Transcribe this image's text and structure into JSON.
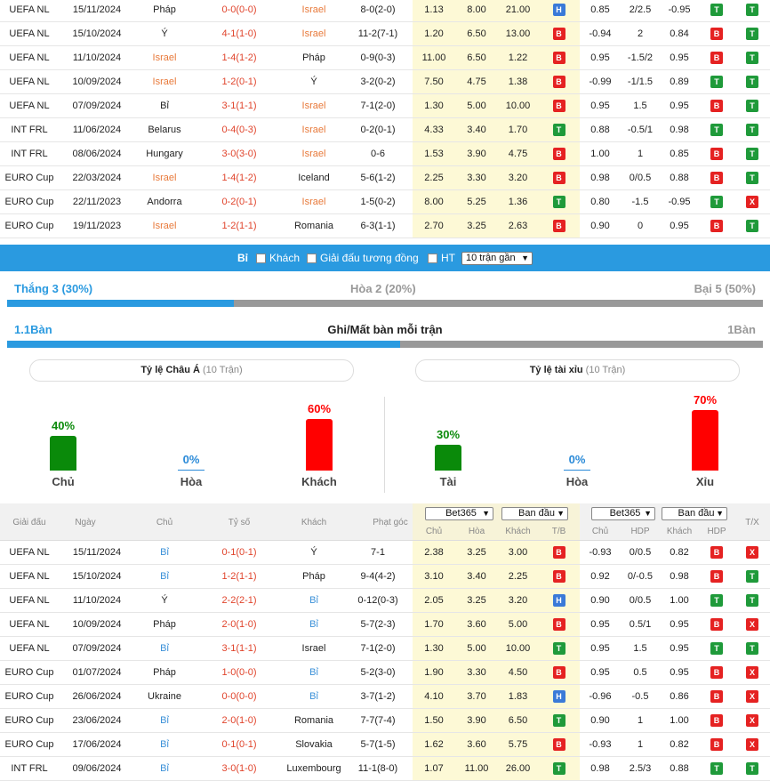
{
  "table1": [
    {
      "league": "UEFA NL",
      "date": "15/11/2024",
      "home": "Pháp",
      "score": "0-0(0-0)",
      "away": "Israel",
      "corner": "8-0(2-0)",
      "o1": "1.13",
      "o2": "8.00",
      "o3": "21.00",
      "tb": "H",
      "h1": "0.85",
      "h2": "2/2.5",
      "h3": "-0.95",
      "hdp": "T",
      "tx": "T",
      "hl": "away"
    },
    {
      "league": "UEFA NL",
      "date": "15/10/2024",
      "home": "Ý",
      "score": "4-1(1-0)",
      "away": "Israel",
      "corner": "11-2(7-1)",
      "o1": "1.20",
      "o2": "6.50",
      "o3": "13.00",
      "tb": "B",
      "h1": "-0.94",
      "h2": "2",
      "h3": "0.84",
      "hdp": "B",
      "tx": "T",
      "hl": "away"
    },
    {
      "league": "UEFA NL",
      "date": "11/10/2024",
      "home": "Israel",
      "score": "1-4(1-2)",
      "away": "Pháp",
      "corner": "0-9(0-3)",
      "o1": "11.00",
      "o2": "6.50",
      "o3": "1.22",
      "tb": "B",
      "h1": "0.95",
      "h2": "-1.5/2",
      "h3": "0.95",
      "hdp": "B",
      "tx": "T",
      "hl": "home"
    },
    {
      "league": "UEFA NL",
      "date": "10/09/2024",
      "home": "Israel",
      "score": "1-2(0-1)",
      "away": "Ý",
      "corner": "3-2(0-2)",
      "o1": "7.50",
      "o2": "4.75",
      "o3": "1.38",
      "tb": "B",
      "h1": "-0.99",
      "h2": "-1/1.5",
      "h3": "0.89",
      "hdp": "T",
      "tx": "T",
      "hl": "home"
    },
    {
      "league": "UEFA NL",
      "date": "07/09/2024",
      "home": "Bỉ",
      "score": "3-1(1-1)",
      "away": "Israel",
      "corner": "7-1(2-0)",
      "o1": "1.30",
      "o2": "5.00",
      "o3": "10.00",
      "tb": "B",
      "h1": "0.95",
      "h2": "1.5",
      "h3": "0.95",
      "hdp": "B",
      "tx": "T",
      "hl": "away"
    },
    {
      "league": "INT FRL",
      "date": "11/06/2024",
      "home": "Belarus",
      "score": "0-4(0-3)",
      "away": "Israel",
      "corner": "0-2(0-1)",
      "o1": "4.33",
      "o2": "3.40",
      "o3": "1.70",
      "tb": "T",
      "h1": "0.88",
      "h2": "-0.5/1",
      "h3": "0.98",
      "hdp": "T",
      "tx": "T",
      "hl": "away"
    },
    {
      "league": "INT FRL",
      "date": "08/06/2024",
      "home": "Hungary",
      "score": "3-0(3-0)",
      "away": "Israel",
      "corner": "0-6",
      "o1": "1.53",
      "o2": "3.90",
      "o3": "4.75",
      "tb": "B",
      "h1": "1.00",
      "h2": "1",
      "h3": "0.85",
      "hdp": "B",
      "tx": "T",
      "hl": "away"
    },
    {
      "league": "EURO Cup",
      "date": "22/03/2024",
      "home": "Israel",
      "score": "1-4(1-2)",
      "away": "Iceland",
      "corner": "5-6(1-2)",
      "o1": "2.25",
      "o2": "3.30",
      "o3": "3.20",
      "tb": "B",
      "h1": "0.98",
      "h2": "0/0.5",
      "h3": "0.88",
      "hdp": "B",
      "tx": "T",
      "hl": "home"
    },
    {
      "league": "EURO Cup",
      "date": "22/11/2023",
      "home": "Andorra",
      "score": "0-2(0-1)",
      "away": "Israel",
      "corner": "1-5(0-2)",
      "o1": "8.00",
      "o2": "5.25",
      "o3": "1.36",
      "tb": "T",
      "h1": "0.80",
      "h2": "-1.5",
      "h3": "-0.95",
      "hdp": "T",
      "tx": "X",
      "hl": "away"
    },
    {
      "league": "EURO Cup",
      "date": "19/11/2023",
      "home": "Israel",
      "score": "1-2(1-1)",
      "away": "Romania",
      "corner": "6-3(1-1)",
      "o1": "2.70",
      "o2": "3.25",
      "o3": "2.63",
      "tb": "B",
      "h1": "0.90",
      "h2": "0",
      "h3": "0.95",
      "hdp": "B",
      "tx": "T",
      "hl": "home"
    }
  ],
  "filter": {
    "team": "Bỉ",
    "away_label": "Khách",
    "similar_label": "Giải đấu tương đồng",
    "ht_label": "HT",
    "select": "10 trận gần"
  },
  "results": {
    "win": "Thắng 3 (30%)",
    "draw": "Hòa 2 (20%)",
    "loss": "Bại 5 (50%)",
    "win_frac": 0.3
  },
  "goals": {
    "left": "1.1Bàn",
    "title": "Ghi/Mất bàn mỗi trận",
    "right": "1Bàn",
    "left_frac": 0.52
  },
  "asian": {
    "title": "Tỷ lệ Châu Á",
    "count": "(10 Trận)",
    "items": [
      {
        "pct": "40%",
        "label": "Chủ",
        "value": 40,
        "color": "#0a8a0a"
      },
      {
        "pct": "0%",
        "label": "Hòa",
        "value": 0,
        "color": "#2a8ad8"
      },
      {
        "pct": "60%",
        "label": "Khách",
        "value": 60,
        "color": "#ff0000"
      }
    ]
  },
  "overunder": {
    "title": "Tỷ lệ tài xỉu",
    "count": "(10 Trận)",
    "items": [
      {
        "pct": "30%",
        "label": "Tài",
        "value": 30,
        "color": "#0a8a0a"
      },
      {
        "pct": "0%",
        "label": "Hòa",
        "value": 0,
        "color": "#2a8ad8"
      },
      {
        "pct": "70%",
        "label": "Xỉu",
        "value": 70,
        "color": "#ff0000"
      }
    ]
  },
  "header": {
    "league": "Giải đấu",
    "date": "Ngày",
    "home": "Chủ",
    "score": "Tỷ số",
    "away": "Khách",
    "corner": "Phạt góc",
    "bookmaker1": "Bet365",
    "period1": "Ban đầu",
    "bookmaker2": "Bet365",
    "period2": "Ban đầu",
    "home_odds": "Chủ",
    "draw_odds": "Hòa",
    "away_odds": "Khách",
    "tb": "T/B",
    "h_home": "Chủ",
    "h_hdp": "HDP",
    "h_away": "Khách",
    "h_hdp2": "HDP",
    "tx": "T/X"
  },
  "table2": [
    {
      "league": "UEFA NL",
      "date": "15/11/2024",
      "home": "Bỉ",
      "score": "0-1(0-1)",
      "away": "Ý",
      "corner": "7-1",
      "o1": "2.38",
      "o2": "3.25",
      "o3": "3.00",
      "tb": "B",
      "h1": "-0.93",
      "h2": "0/0.5",
      "h3": "0.82",
      "hdp": "B",
      "tx": "X",
      "hl": "home"
    },
    {
      "league": "UEFA NL",
      "date": "15/10/2024",
      "home": "Bỉ",
      "score": "1-2(1-1)",
      "away": "Pháp",
      "corner": "9-4(4-2)",
      "o1": "3.10",
      "o2": "3.40",
      "o3": "2.25",
      "tb": "B",
      "h1": "0.92",
      "h2": "0/-0.5",
      "h3": "0.98",
      "hdp": "B",
      "tx": "T",
      "hl": "home"
    },
    {
      "league": "UEFA NL",
      "date": "11/10/2024",
      "home": "Ý",
      "score": "2-2(2-1)",
      "away": "Bỉ",
      "corner": "0-12(0-3)",
      "o1": "2.05",
      "o2": "3.25",
      "o3": "3.20",
      "tb": "H",
      "h1": "0.90",
      "h2": "0/0.5",
      "h3": "1.00",
      "hdp": "T",
      "tx": "T",
      "hl": "away"
    },
    {
      "league": "UEFA NL",
      "date": "10/09/2024",
      "home": "Pháp",
      "score": "2-0(1-0)",
      "away": "Bỉ",
      "corner": "5-7(2-3)",
      "o1": "1.70",
      "o2": "3.60",
      "o3": "5.00",
      "tb": "B",
      "h1": "0.95",
      "h2": "0.5/1",
      "h3": "0.95",
      "hdp": "B",
      "tx": "X",
      "hl": "away"
    },
    {
      "league": "UEFA NL",
      "date": "07/09/2024",
      "home": "Bỉ",
      "score": "3-1(1-1)",
      "away": "Israel",
      "corner": "7-1(2-0)",
      "o1": "1.30",
      "o2": "5.00",
      "o3": "10.00",
      "tb": "T",
      "h1": "0.95",
      "h2": "1.5",
      "h3": "0.95",
      "hdp": "T",
      "tx": "T",
      "hl": "home"
    },
    {
      "league": "EURO Cup",
      "date": "01/07/2024",
      "home": "Pháp",
      "score": "1-0(0-0)",
      "away": "Bỉ",
      "corner": "5-2(3-0)",
      "o1": "1.90",
      "o2": "3.30",
      "o3": "4.50",
      "tb": "B",
      "h1": "0.95",
      "h2": "0.5",
      "h3": "0.95",
      "hdp": "B",
      "tx": "X",
      "hl": "away"
    },
    {
      "league": "EURO Cup",
      "date": "26/06/2024",
      "home": "Ukraine",
      "score": "0-0(0-0)",
      "away": "Bỉ",
      "corner": "3-7(1-2)",
      "o1": "4.10",
      "o2": "3.70",
      "o3": "1.83",
      "tb": "H",
      "h1": "-0.96",
      "h2": "-0.5",
      "h3": "0.86",
      "hdp": "B",
      "tx": "X",
      "hl": "away"
    },
    {
      "league": "EURO Cup",
      "date": "23/06/2024",
      "home": "Bỉ",
      "score": "2-0(1-0)",
      "away": "Romania",
      "corner": "7-7(7-4)",
      "o1": "1.50",
      "o2": "3.90",
      "o3": "6.50",
      "tb": "T",
      "h1": "0.90",
      "h2": "1",
      "h3": "1.00",
      "hdp": "B",
      "tx": "X",
      "hl": "home"
    },
    {
      "league": "EURO Cup",
      "date": "17/06/2024",
      "home": "Bỉ",
      "score": "0-1(0-1)",
      "away": "Slovakia",
      "corner": "5-7(1-5)",
      "o1": "1.62",
      "o2": "3.60",
      "o3": "5.75",
      "tb": "B",
      "h1": "-0.93",
      "h2": "1",
      "h3": "0.82",
      "hdp": "B",
      "tx": "X",
      "hl": "home"
    },
    {
      "league": "INT FRL",
      "date": "09/06/2024",
      "home": "Bỉ",
      "score": "3-0(1-0)",
      "away": "Luxembourg",
      "corner": "11-1(8-0)",
      "o1": "1.07",
      "o2": "11.00",
      "o3": "26.00",
      "tb": "T",
      "h1": "0.98",
      "h2": "2.5/3",
      "h3": "0.88",
      "hdp": "T",
      "tx": "T",
      "hl": "home"
    }
  ]
}
